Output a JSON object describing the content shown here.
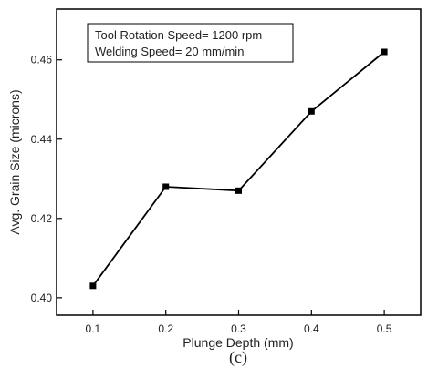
{
  "chart_data": {
    "type": "line",
    "title": "",
    "xlabel": "Plunge Depth (mm)",
    "ylabel": "Avg. Grain Size (microns)",
    "caption": "(c)",
    "x": [
      0.1,
      0.2,
      0.3,
      0.4,
      0.5
    ],
    "y": [
      0.403,
      0.428,
      0.427,
      0.447,
      0.462
    ],
    "xlim": [
      0.05,
      0.55
    ],
    "ylim": [
      0.3956,
      0.4728
    ],
    "xticks": [
      0.1,
      0.2,
      0.3,
      0.4,
      0.5
    ],
    "xtick_labels": [
      "0.1",
      "0.2",
      "0.3",
      "0.4",
      "0.5"
    ],
    "yticks": [
      0.4,
      0.42,
      0.44,
      0.46
    ],
    "ytick_labels": [
      "0.40",
      "0.42",
      "0.44",
      "0.46"
    ],
    "annotations": [
      "Tool Rotation Speed= 1200 rpm",
      "Welding Speed= 20 mm/min"
    ],
    "marker": "square",
    "line_color": "#000000",
    "grid": false,
    "legend": "none"
  }
}
